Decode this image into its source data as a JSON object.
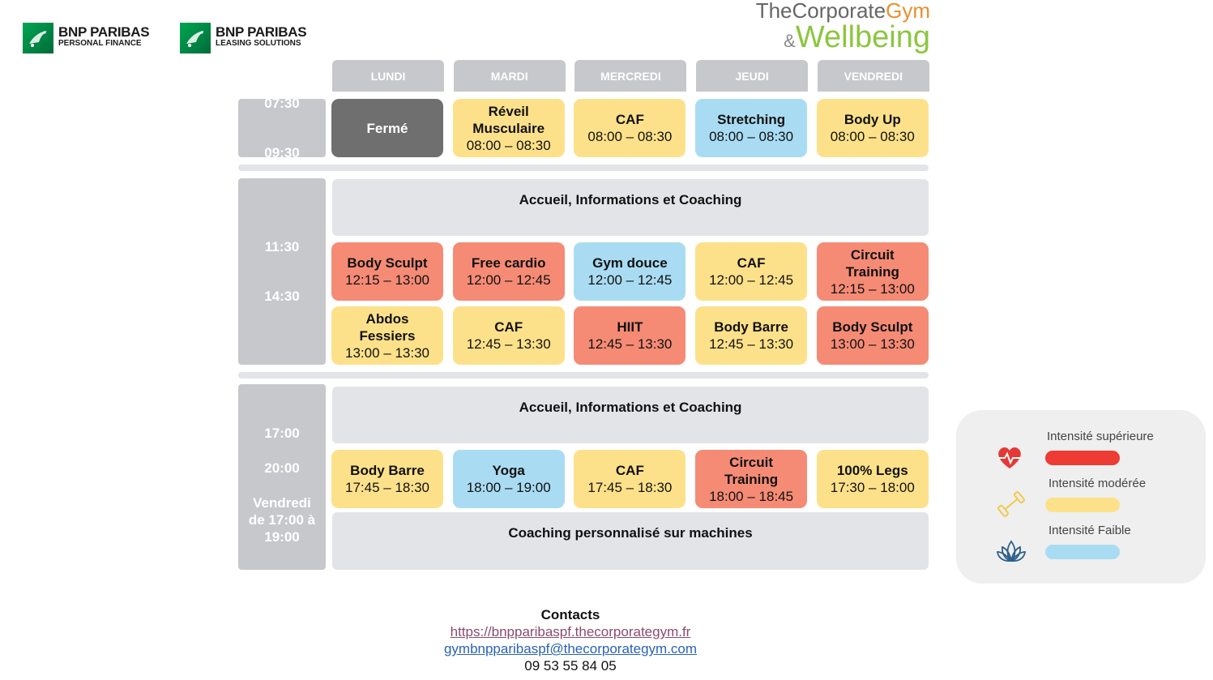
{
  "logos": [
    {
      "name": "BNP PARIBAS",
      "sub": "PERSONAL FINANCE"
    },
    {
      "name": "BNP PARIBAS",
      "sub": "LEASING SOLUTIONS"
    }
  ],
  "brand": {
    "part1": "TheCorporate",
    "part2": "Gym",
    "part3": "&",
    "part4": "Wellbeing"
  },
  "days": [
    "LUNDI",
    "MARDI",
    "MERCREDI",
    "JEUDI",
    "VENDREDI"
  ],
  "sections": [
    {
      "times": [
        "07:30",
        "09:30"
      ],
      "gap": 0,
      "rows": [
        {
          "cells": [
            {
              "title": "Fermé",
              "color": "#6f6f6f"
            },
            {
              "title": "Réveil Musculaire",
              "time": "08:00 – 08:30",
              "color": "#fde18a"
            },
            {
              "title": "CAF",
              "time": "08:00 – 08:30",
              "color": "#fde18a"
            },
            {
              "title": "Stretching",
              "time": "08:00 – 08:30",
              "color": "#a9dcf2"
            },
            {
              "title": "Body Up",
              "time": "08:00 – 08:30",
              "color": "#fde18a"
            }
          ]
        }
      ]
    },
    {
      "times": [
        "11:30",
        "14:30"
      ],
      "rows": [
        {
          "banner": "Accueil, Informations et Coaching"
        },
        {
          "cells": [
            {
              "title": "Body Sculpt",
              "time": "12:15 – 13:00",
              "color": "#f58b75"
            },
            {
              "title": "Free cardio",
              "time": "12:00 – 12:45",
              "color": "#f58b75"
            },
            {
              "title": "Gym douce",
              "time": "12:00 – 12:45",
              "color": "#a9dcf2"
            },
            {
              "title": "CAF",
              "time": "12:00 – 12:45",
              "color": "#fde18a"
            },
            {
              "title": "Circuit Training",
              "time": "12:15 – 13:00",
              "color": "#f58b75"
            }
          ]
        },
        {
          "cells": [
            {
              "title": "Abdos Fessiers",
              "time": "13:00 – 13:30",
              "color": "#fde18a"
            },
            {
              "title": "CAF",
              "time": "12:45 – 13:30",
              "color": "#fde18a"
            },
            {
              "title": "HIIT",
              "time": "12:45 – 13:30",
              "color": "#f58b75"
            },
            {
              "title": "Body Barre",
              "time": "12:45 – 13:30",
              "color": "#fde18a"
            },
            {
              "title": "Body Sculpt",
              "time": "13:00 – 13:30",
              "color": "#f58b75"
            }
          ]
        }
      ]
    },
    {
      "times": [
        "17:00",
        "20:00",
        "Vendredi de 17:00 à 19:00"
      ],
      "rows": [
        {
          "banner": "Accueil, Informations et Coaching"
        },
        {
          "cells": [
            {
              "title": "Body Barre",
              "time": "17:45 – 18:30",
              "color": "#fde18a"
            },
            {
              "title": "Yoga",
              "time": "18:00 – 19:00",
              "color": "#a9dcf2"
            },
            {
              "title": "CAF",
              "time": "17:45 – 18:30",
              "color": "#fde18a"
            },
            {
              "title": "Circuit Training",
              "time": "18:00 – 18:45",
              "color": "#f58b75"
            },
            {
              "title": "100% Legs",
              "time": "17:30 – 18:00",
              "color": "#fde18a"
            }
          ]
        },
        {
          "banner": "Coaching personnalisé sur machines"
        }
      ]
    }
  ],
  "legend": [
    {
      "label": "Intensité supérieure",
      "color": "#ee3b33"
    },
    {
      "label": "Intensité modérée",
      "color": "#fde18a"
    },
    {
      "label": "Intensité Faible",
      "color": "#a9dcf2"
    }
  ],
  "contacts": {
    "title": "Contacts",
    "url": "https://bnpparibaspf.thecorporategym.fr",
    "email": "gymbnpparibaspf@thecorporategym.com",
    "phone": "09 53 55 84 05"
  }
}
